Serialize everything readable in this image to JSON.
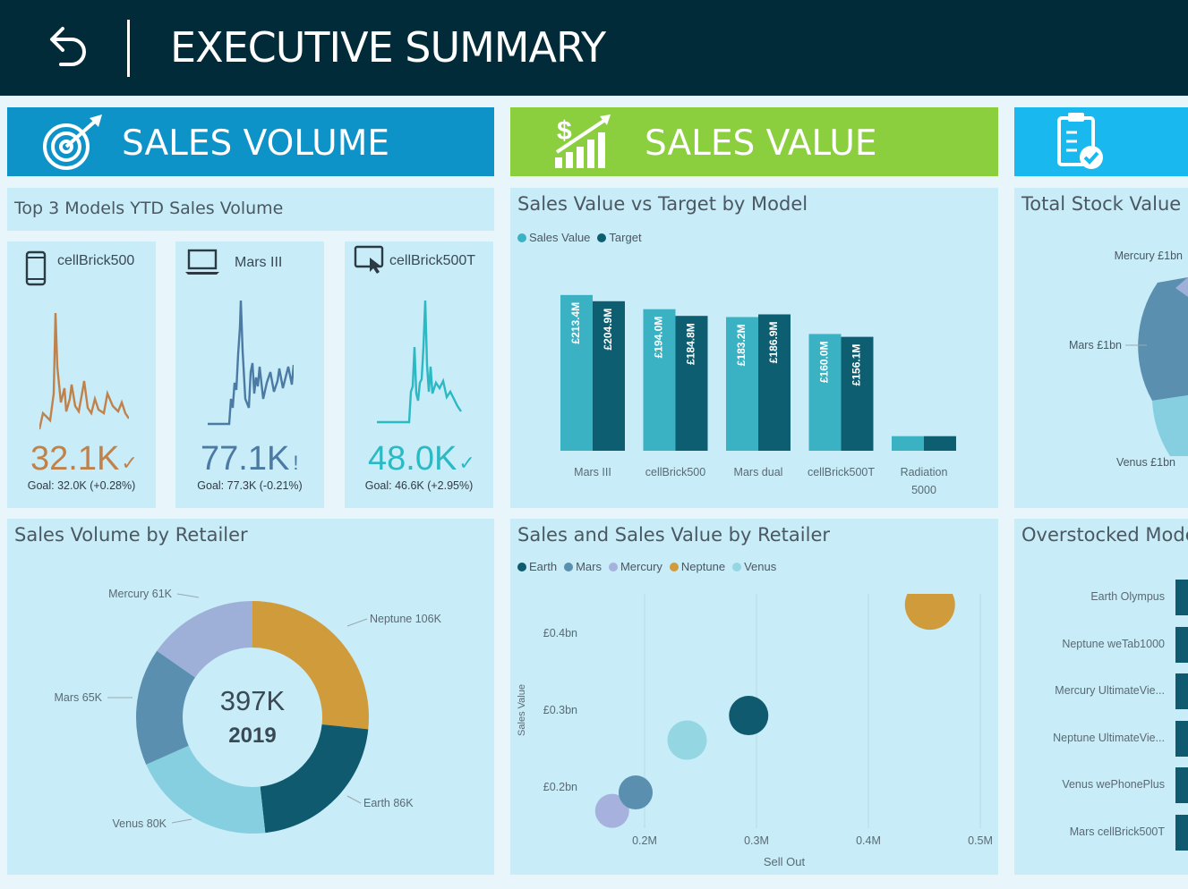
{
  "header": {
    "title": "EXECUTIVE SUMMARY"
  },
  "sections": {
    "volume": {
      "label": "SALES VOLUME",
      "icon": "target-icon",
      "color": "#0e93c8"
    },
    "value": {
      "label": "SALES VALUE",
      "icon": "money-growth-icon",
      "color": "#8bcf3e"
    },
    "stock": {
      "icon": "clipboard-check-icon",
      "color": "#19b8ee"
    }
  },
  "kpis": {
    "title": "Top 3 Models YTD Sales Volume",
    "items": [
      {
        "name": "cellBrick500",
        "icon": "smartphone-icon",
        "value": "32.1K",
        "indicator": "✓",
        "goal": "Goal: 32.0K (+0.28%)",
        "color": "#c0824a"
      },
      {
        "name": "Mars III",
        "icon": "laptop-icon",
        "value": "77.1K",
        "indicator": "!",
        "goal": "Goal: 77.3K (-0.21%)",
        "color": "#4b7aa3"
      },
      {
        "name": "cellBrick500T",
        "icon": "touch-screen-icon",
        "value": "48.0K",
        "indicator": "✓",
        "goal": "Goal: 46.6K (+2.95%)",
        "color": "#2bb9c3"
      }
    ]
  },
  "bar_chart": {
    "title": "Sales Value vs Target by Model",
    "chart_data": {
      "type": "bar",
      "categories": [
        "Mars III",
        "cellBrick500",
        "Mars dual",
        "cellBrick500T",
        "Radiation 5000"
      ],
      "category_lines": [
        [
          "Mars III"
        ],
        [
          "cellBrick500"
        ],
        [
          "Mars dual"
        ],
        [
          "cellBrick500T"
        ],
        [
          "Radiation",
          "5000"
        ]
      ],
      "series": [
        {
          "name": "Sales Value",
          "color": "#3ab2c4",
          "values": [
            213.4,
            194.0,
            183.2,
            160.0,
            20
          ],
          "labels": [
            "£213.4M",
            "£194.0M",
            "£183.2M",
            "£160.0M",
            ""
          ]
        },
        {
          "name": "Target",
          "color": "#0e5e72",
          "values": [
            204.9,
            184.8,
            186.9,
            156.1,
            20
          ],
          "labels": [
            "£204.9M",
            "£184.8M",
            "£186.9M",
            "£156.1M",
            ""
          ]
        }
      ],
      "ylim": [
        0,
        230
      ]
    }
  },
  "donut_chart": {
    "title": "Sales Volume by Retailer",
    "center_value": "397K",
    "center_sub": "2019",
    "chart_data": {
      "type": "pie",
      "categories": [
        "Neptune",
        "Earth",
        "Venus",
        "Mars",
        "Mercury"
      ],
      "values": [
        106,
        86,
        80,
        65,
        61
      ],
      "labels": [
        "Neptune 106K",
        "Earth 86K",
        "Venus 80K",
        "Mars 65K",
        "Mercury 61K"
      ],
      "colors": [
        "#cf9b3b",
        "#0f5a6e",
        "#86cfe0",
        "#5b8fb0",
        "#9eb0d8"
      ]
    }
  },
  "scatter_chart": {
    "title": "Sales and Sales Value by Retailer",
    "chart_data": {
      "type": "scatter",
      "xlabel": "Sell Out",
      "ylabel": "Sales Value",
      "x_ticks": [
        "0.2M",
        "0.3M",
        "0.4M",
        "0.5M"
      ],
      "y_ticks": [
        "£0.2bn",
        "£0.3bn",
        "£0.4bn"
      ],
      "xlim": [
        0.12,
        0.5
      ],
      "ylim": [
        0.15,
        0.44
      ],
      "series": [
        {
          "name": "Earth",
          "color": "#0f5a6e",
          "x": 0.293,
          "y": 0.293
        },
        {
          "name": "Mars",
          "color": "#5b8fb0",
          "x": 0.192,
          "y": 0.193
        },
        {
          "name": "Mercury",
          "color": "#a7b1dd",
          "x": 0.171,
          "y": 0.169
        },
        {
          "name": "Neptune",
          "color": "#cf9b3b",
          "x": 0.455,
          "y": 0.437
        },
        {
          "name": "Venus",
          "color": "#95d6e3",
          "x": 0.238,
          "y": 0.261
        }
      ]
    }
  },
  "stock_chart": {
    "title": "Total Stock Value b",
    "labels": [
      "Mercury £1bn",
      "Mars £1bn",
      "Venus £1bn"
    ]
  },
  "overstock": {
    "title": "Overstocked Mode",
    "items": [
      "Earth Olympus",
      "Neptune weTab1000",
      "Mercury UltimateVie...",
      "Neptune UltimateVie...",
      "Venus wePhonePlus",
      "Mars cellBrick500T"
    ]
  }
}
